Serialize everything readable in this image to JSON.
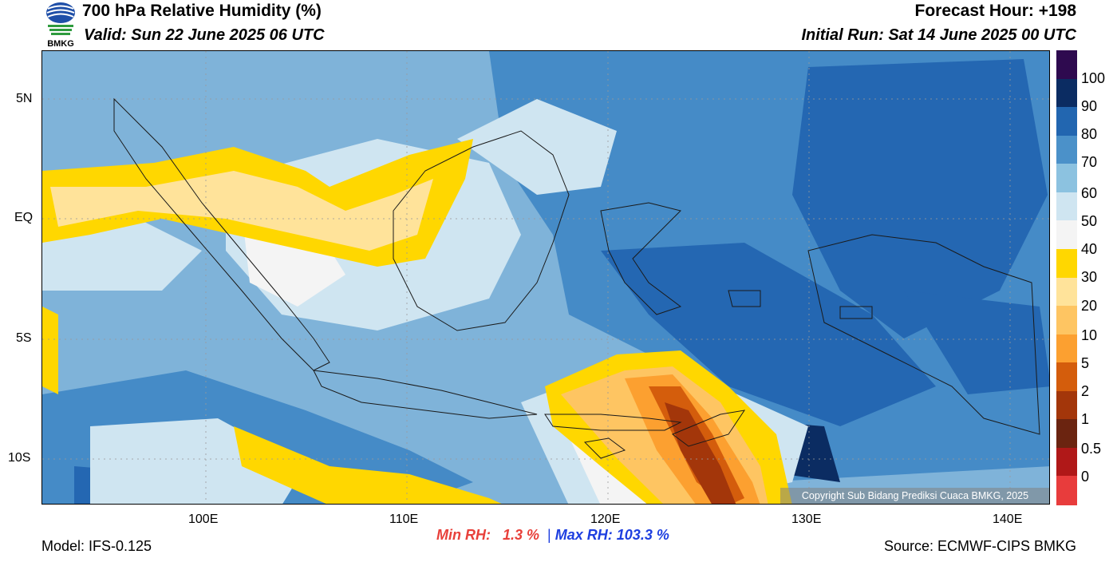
{
  "header": {
    "title": "700 hPa Relative Humidity (%)",
    "valid": "Valid: Sun 22 June 2025 06 UTC",
    "forecast_hour": "Forecast Hour: +198",
    "initial_run": "Initial Run: Sat 14 June 2025 00 UTC",
    "logo_text": "BMKG"
  },
  "map": {
    "lat_ticks": [
      "5N",
      "EQ",
      "5S",
      "10S"
    ],
    "lon_ticks": [
      "100E",
      "110E",
      "120E",
      "130E",
      "140E"
    ],
    "copyright": "Copyright Sub Bidang Prediksi Cuaca BMKG, 2025"
  },
  "colorbar": {
    "colors": [
      "#2e0a4f",
      "#0b2c62",
      "#2266b0",
      "#4b91c9",
      "#8cc2e0",
      "#cfe5f1",
      "#f4f4f4",
      "#ffd700",
      "#ffe39a",
      "#fec562",
      "#fca030",
      "#d45d0c",
      "#a3360a",
      "#6b2410",
      "#b01818",
      "#e83c3c"
    ],
    "labels": [
      "100",
      "90",
      "80",
      "70",
      "60",
      "50",
      "40",
      "30",
      "20",
      "10",
      "5",
      "2",
      "1",
      "0.5",
      "0"
    ]
  },
  "stats": {
    "min_label": "Min RH:",
    "min_value": "1.3 %",
    "separator": "|",
    "max_label": "Max RH:",
    "max_value": "103.3 %",
    "min_color": "#e8403a",
    "max_color": "#1e3fe0"
  },
  "footer": {
    "model": "Model: IFS-0.125",
    "source": "Source: ECMWF-CIPS BMKG"
  }
}
